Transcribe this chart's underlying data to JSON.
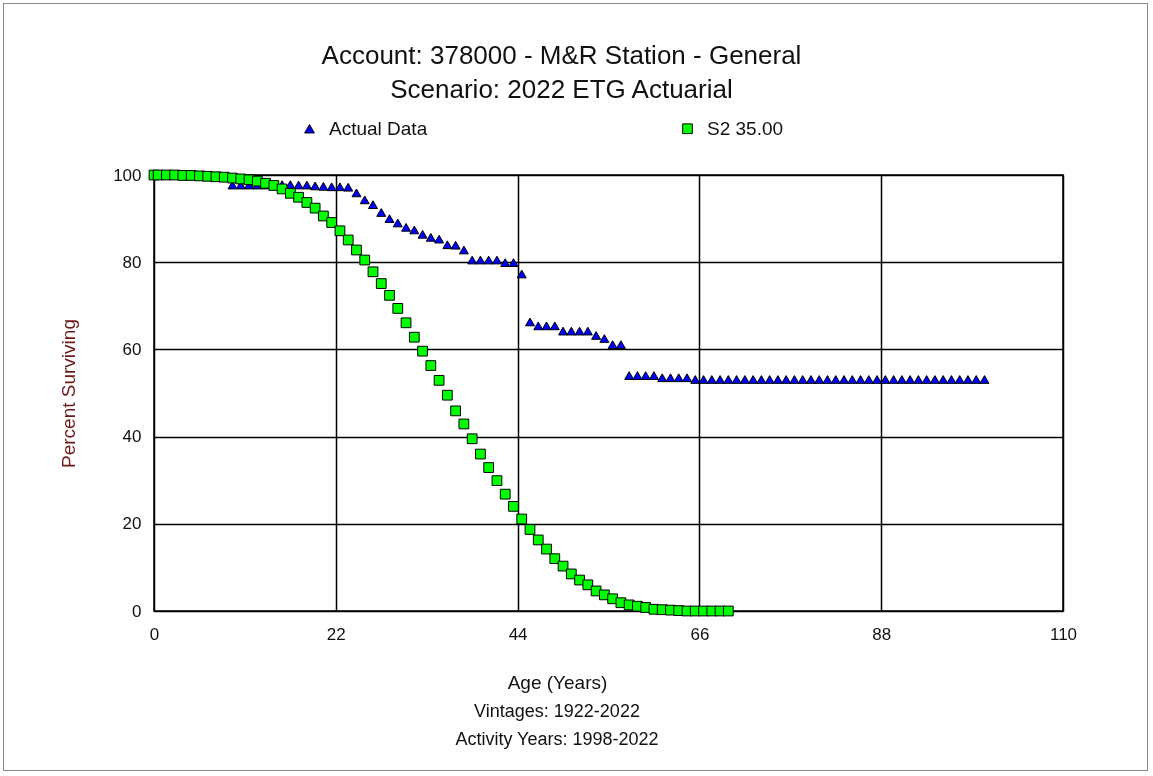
{
  "chart_data": {
    "type": "scatter",
    "title": "Account: 378000 - M&R Station - General",
    "subtitle": "Scenario: 2022 ETG Actuarial",
    "xlabel": "Age (Years)",
    "ylabel": "Percent Surviving",
    "annotations": [
      "Vintages: 1922-2022",
      "Activity Years: 1998-2022"
    ],
    "xlim": [
      0,
      110
    ],
    "xticks": [
      0,
      22,
      44,
      66,
      88,
      110
    ],
    "ylim": [
      0,
      100
    ],
    "yticks": [
      0,
      20,
      40,
      60,
      80,
      100
    ],
    "grid": true,
    "legend": "top",
    "series": [
      {
        "name": "Actual Data",
        "color": "#0000ff",
        "marker": "triangle",
        "x": [
          9.5,
          10.5,
          11.5,
          12.5,
          13.5,
          15.5,
          16.5,
          17.5,
          18.5,
          19.5,
          20.5,
          21.5,
          22.5,
          23.5,
          24.5,
          25.5,
          26.5,
          27.5,
          28.5,
          29.5,
          30.5,
          31.5,
          32.5,
          33.5,
          34.5,
          35.5,
          36.5,
          37.5,
          38.5,
          39.5,
          40.5,
          41.5,
          42.5,
          43.5,
          44.5,
          45.5,
          46.5,
          47.5,
          48.5,
          49.5,
          50.5,
          51.5,
          52.5,
          53.5,
          54.5,
          55.5,
          56.5,
          57.5,
          58.5,
          59.5,
          60.5,
          61.5,
          62.5,
          63.5,
          64.5,
          65.5,
          66.5,
          67.5,
          68.5,
          69.5,
          70.5,
          71.5,
          72.5,
          73.5,
          74.5,
          75.5,
          76.5,
          77.5,
          78.5,
          79.5,
          80.5,
          81.5,
          82.5,
          83.5,
          84.5,
          85.5,
          86.5,
          87.5,
          88.5,
          89.5,
          90.5,
          91.5,
          92.5,
          93.5,
          94.5,
          95.5,
          96.5,
          97.5,
          98.5,
          99.5,
          100.5
        ],
        "values": [
          97.7,
          97.7,
          97.7,
          97.7,
          97.7,
          97.8,
          97.8,
          97.7,
          97.7,
          97.5,
          97.4,
          97.3,
          97.3,
          97.2,
          95.9,
          94.3,
          93.2,
          91.4,
          90.0,
          89.0,
          88.0,
          87.4,
          86.4,
          85.7,
          85.3,
          84.0,
          83.9,
          82.8,
          80.5,
          80.5,
          80.5,
          80.5,
          79.9,
          79.9,
          77.3,
          66.3,
          65.4,
          65.4,
          65.4,
          64.2,
          64.2,
          64.2,
          64.2,
          63.2,
          62.5,
          61.1,
          61.1,
          54.0,
          54.0,
          54.0,
          54.0,
          53.5,
          53.5,
          53.5,
          53.5,
          53.1,
          53.1,
          53.1,
          53.1,
          53.1,
          53.1,
          53.1,
          53.1,
          53.1,
          53.1,
          53.1,
          53.1,
          53.1,
          53.1,
          53.1,
          53.1,
          53.1,
          53.1,
          53.1,
          53.1,
          53.1,
          53.1,
          53.1,
          53.1,
          53.1,
          53.1,
          53.1,
          53.1,
          53.1,
          53.1,
          53.1,
          53.1,
          53.1,
          53.1,
          53.1,
          53.1
        ]
      },
      {
        "name": "S2 35.00",
        "color": "#00ff00",
        "marker": "square",
        "x": [
          0,
          0.5,
          1.5,
          2.5,
          3.5,
          4.5,
          5.5,
          6.5,
          7.5,
          8.5,
          9.5,
          10.5,
          11.5,
          12.5,
          13.5,
          14.5,
          15.5,
          16.5,
          17.5,
          18.5,
          19.5,
          20.5,
          21.5,
          22.5,
          23.5,
          24.5,
          25.5,
          26.5,
          27.5,
          28.5,
          29.5,
          30.5,
          31.5,
          32.5,
          33.5,
          34.5,
          35.5,
          36.5,
          37.5,
          38.5,
          39.5,
          40.5,
          41.5,
          42.5,
          43.5,
          44.5,
          45.5,
          46.5,
          47.5,
          48.5,
          49.5,
          50.5,
          51.5,
          52.5,
          53.5,
          54.5,
          55.5,
          56.5,
          57.5,
          58.5,
          59.5,
          60.5,
          61.5,
          62.5,
          63.5,
          64.5,
          65.5,
          66.5,
          67.5,
          68.5,
          69.5
        ],
        "values": [
          100,
          100,
          100,
          100,
          99.9,
          99.9,
          99.8,
          99.7,
          99.6,
          99.5,
          99.3,
          99.1,
          98.9,
          98.6,
          98.1,
          97.6,
          96.8,
          95.8,
          94.9,
          93.7,
          92.4,
          90.6,
          89.1,
          87.2,
          85.1,
          82.8,
          80.5,
          77.8,
          75.1,
          72.4,
          69.4,
          66.1,
          62.8,
          59.6,
          56.3,
          52.9,
          49.5,
          45.9,
          42.9,
          39.5,
          36.0,
          32.9,
          29.9,
          26.8,
          24.0,
          21.1,
          18.7,
          16.3,
          14.2,
          12.0,
          10.3,
          8.5,
          7.1,
          6.0,
          4.6,
          3.7,
          2.8,
          1.9,
          1.4,
          1.1,
          0.8,
          0.4,
          0.3,
          0.2,
          0.1,
          0,
          0,
          0,
          0,
          0,
          0
        ]
      }
    ]
  }
}
